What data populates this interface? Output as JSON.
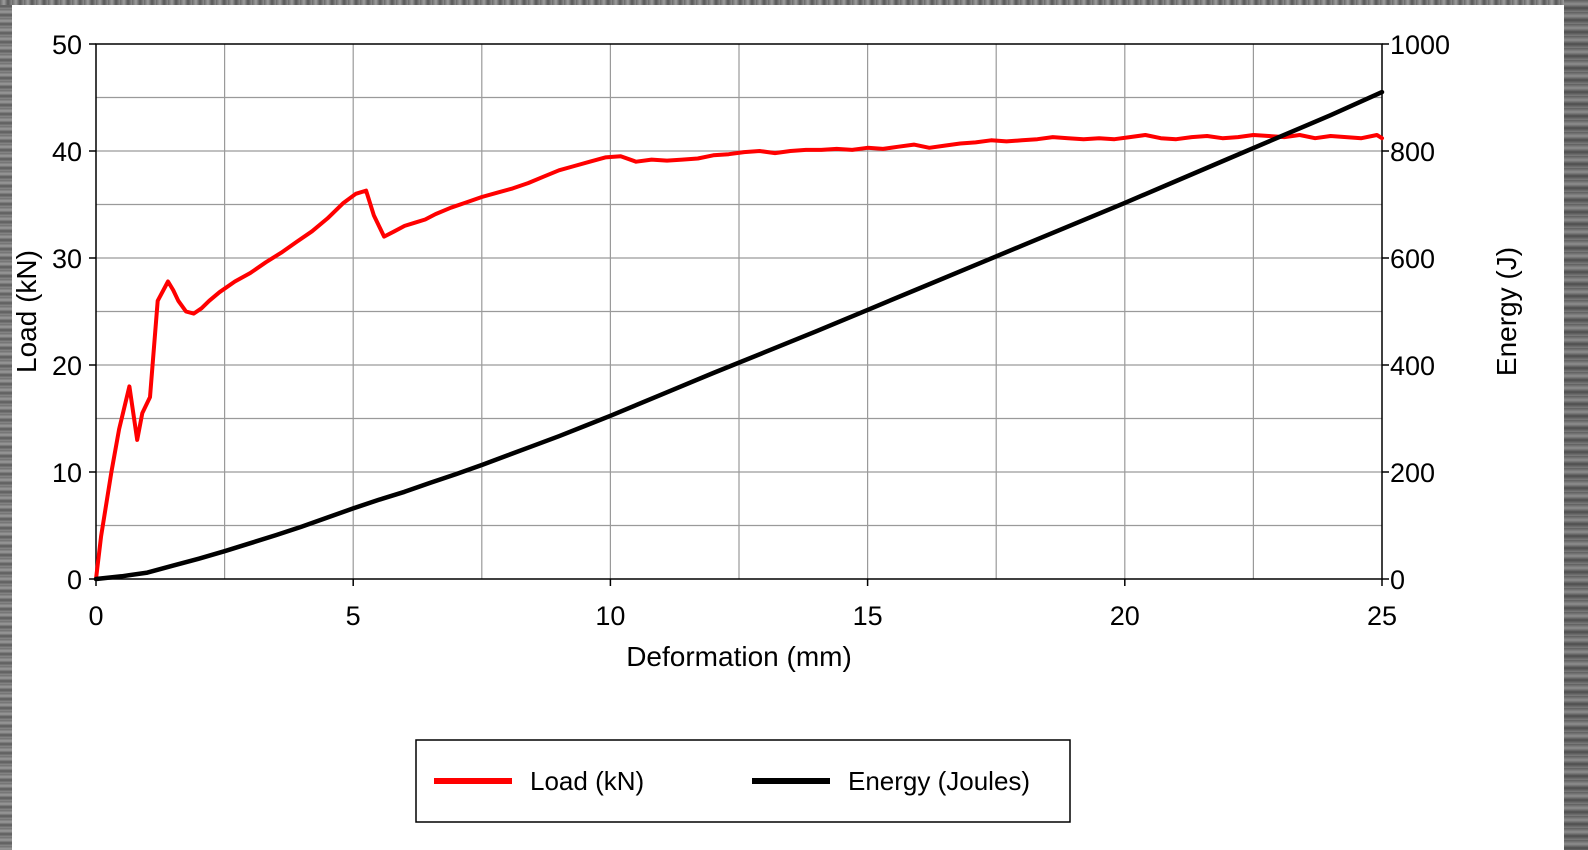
{
  "chart_data": {
    "type": "line",
    "xlabel": "Deformation (mm)",
    "ylabel": "Load (kN)",
    "y2label": "Energy (J)",
    "xlim": [
      0,
      25
    ],
    "ylim": [
      0,
      50
    ],
    "y2lim": [
      0,
      1000
    ],
    "xticks": [
      0,
      5,
      10,
      15,
      20,
      25
    ],
    "yticks": [
      0,
      10,
      20,
      30,
      40,
      50
    ],
    "y2ticks": [
      0,
      200,
      400,
      600,
      800,
      1000
    ],
    "grid": true,
    "legend_position": "bottom-center",
    "series": [
      {
        "name": "Load (kN)",
        "axis": "left",
        "color": "#ff0000",
        "x": [
          0,
          0.1,
          0.3,
          0.45,
          0.65,
          0.8,
          0.9,
          1.05,
          1.2,
          1.4,
          1.5,
          1.6,
          1.75,
          1.9,
          2.05,
          2.2,
          2.4,
          2.7,
          3.0,
          3.3,
          3.6,
          3.9,
          4.2,
          4.5,
          4.8,
          5.05,
          5.25,
          5.4,
          5.6,
          5.8,
          6.0,
          6.2,
          6.4,
          6.6,
          6.9,
          7.2,
          7.5,
          7.8,
          8.1,
          8.4,
          8.7,
          9.0,
          9.3,
          9.6,
          9.9,
          10.2,
          10.5,
          10.8,
          11.1,
          11.4,
          11.7,
          12.0,
          12.3,
          12.6,
          12.9,
          13.2,
          13.5,
          13.8,
          14.1,
          14.4,
          14.7,
          15.0,
          15.3,
          15.6,
          15.9,
          16.2,
          16.5,
          16.8,
          17.1,
          17.4,
          17.7,
          18.0,
          18.3,
          18.6,
          18.9,
          19.2,
          19.5,
          19.8,
          20.1,
          20.4,
          20.7,
          21.0,
          21.3,
          21.6,
          21.9,
          22.2,
          22.5,
          22.8,
          23.1,
          23.4,
          23.7,
          24.0,
          24.3,
          24.6,
          24.9,
          25.0
        ],
        "y": [
          0,
          4,
          10,
          14,
          18,
          13,
          15.5,
          17,
          26,
          27.8,
          27,
          26,
          25,
          24.8,
          25.3,
          26,
          26.8,
          27.8,
          28.6,
          29.6,
          30.5,
          31.5,
          32.5,
          33.7,
          35.1,
          36,
          36.3,
          34,
          32,
          32.5,
          33,
          33.3,
          33.6,
          34.1,
          34.7,
          35.2,
          35.7,
          36.1,
          36.5,
          37,
          37.6,
          38.2,
          38.6,
          39,
          39.4,
          39.5,
          39,
          39.2,
          39.1,
          39.2,
          39.3,
          39.6,
          39.7,
          39.9,
          40,
          39.8,
          40,
          40.1,
          40.1,
          40.2,
          40.1,
          40.3,
          40.2,
          40.4,
          40.6,
          40.3,
          40.5,
          40.7,
          40.8,
          41,
          40.9,
          41,
          41.1,
          41.3,
          41.2,
          41.1,
          41.2,
          41.1,
          41.3,
          41.5,
          41.2,
          41.1,
          41.3,
          41.4,
          41.2,
          41.3,
          41.5,
          41.4,
          41.3,
          41.5,
          41.2,
          41.4,
          41.3,
          41.2,
          41.5,
          41.2
        ]
      },
      {
        "name": "Energy (Joules)",
        "axis": "right",
        "color": "#000000",
        "x": [
          0,
          0.5,
          1,
          1.5,
          2,
          2.5,
          3,
          3.5,
          4,
          4.5,
          5,
          5.5,
          6,
          6.5,
          7,
          7.5,
          8,
          8.5,
          9,
          9.5,
          10,
          11,
          12,
          13,
          14,
          15,
          16,
          17,
          18,
          19,
          20,
          21,
          22,
          23,
          24,
          25
        ],
        "y": [
          0,
          5,
          12,
          25,
          38,
          52,
          67,
          82,
          98,
          115,
          132,
          148,
          163,
          180,
          196,
          213,
          231,
          249,
          267,
          286,
          305,
          345,
          385,
          424,
          463,
          503,
          543,
          583,
          623,
          663,
          703,
          744,
          785,
          826,
          867,
          910
        ]
      }
    ]
  },
  "legend": {
    "items": [
      {
        "label": "Load (kN)",
        "color": "#ff0000"
      },
      {
        "label": "Energy (Joules)",
        "color": "#000000"
      }
    ]
  }
}
